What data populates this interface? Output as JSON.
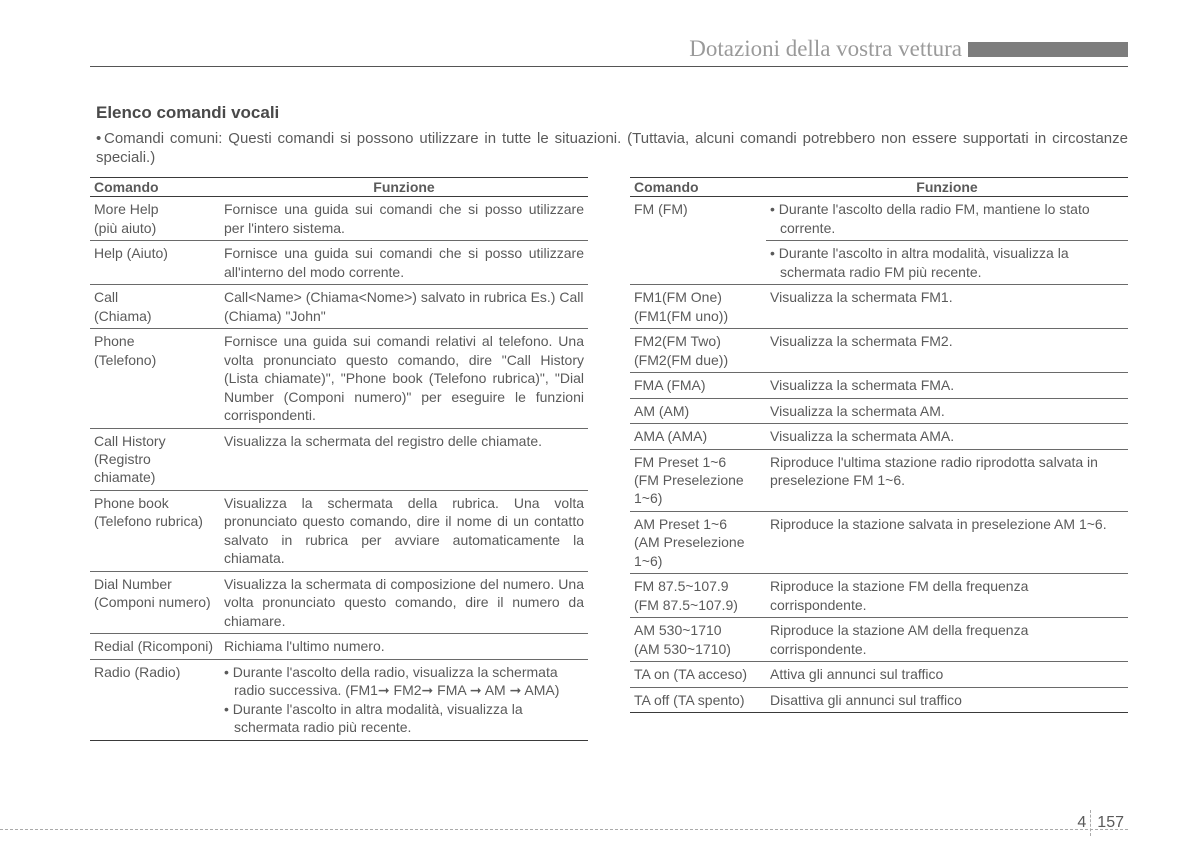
{
  "header": {
    "title": "Dotazioni della vostra vettura"
  },
  "section": {
    "title": "Elenco comandi vocali",
    "intro": "Comandi comuni: Questi comandi si possono utilizzare in tutte le situazioni. (Tuttavia, alcuni comandi potrebbero non essere supportati in circostanze speciali.)"
  },
  "tableHeaders": {
    "cmd": "Comando",
    "func": "Funzione"
  },
  "left": [
    {
      "c1": "More Help",
      "c1b": "(più aiuto)",
      "c2": "Fornisce una guida sui comandi che si posso utilizzare per l'intero sistema.",
      "jst": true
    },
    {
      "c1": "Help (Aiuto)",
      "c2": "Fornisce una guida sui comandi che si posso utilizzare all'interno del modo corrente.",
      "jst": true
    },
    {
      "c1": "Call<Name>",
      "c1b": "(Chiama<Nome>)",
      "c2": "Call<Name> (Chiama<Nome>) salvato in rubrica Es.) Call (Chiama) \"John\""
    },
    {
      "c1": "Phone",
      "c1b": "(Telefono)",
      "c2": "Fornisce una guida sui comandi relativi al telefono. Una volta pronunciato questo comando, dire \"Call History (Lista chiamate)\", \"Phone book (Telefono rubrica)\", \"Dial Number (Componi numero)\" per eseguire le funzioni corrispondenti.",
      "jst": true
    },
    {
      "c1": "Call History",
      "c1b": "(Registro chiamate)",
      "c2": "Visualizza la schermata del registro delle chiamate.",
      "jst": true
    },
    {
      "c1": "Phone book",
      "c1b": "(Telefono rubrica)",
      "c2": "Visualizza la schermata della rubrica. Una volta pronunciato questo comando, dire il nome di un contatto salvato in rubrica per avviare automaticamente la chiamata.",
      "jst": true
    },
    {
      "c1": "Dial Number",
      "c1b": "(Componi numero)",
      "c2": "Visualizza la schermata di composizione del numero. Una volta pronunciato questo comando, dire il numero da chiamare.",
      "jst": true
    },
    {
      "c1": "Redial (Ricomponi)",
      "c2": "Richiama l'ultimo numero."
    },
    {
      "c1": "Radio (Radio)",
      "c2list": [
        "Durante l'ascolto della radio, visualizza la schermata radio successiva. (FM1➞ FM2➞ FMA ➞ AM ➞ AMA)",
        "Durante l'ascolto in altra modalità, visualizza la schermata radio più recente."
      ]
    }
  ],
  "right": [
    {
      "c1": "FM (FM)",
      "c2list": [
        "Durante l'ascolto della radio FM, mantiene lo stato corrente.",
        "Durante l'ascolto in altra modalità, visualizza la schermata radio FM più recente."
      ],
      "split": true
    },
    {
      "c1": "FM1(FM One)",
      "c1b": "(FM1(FM uno))",
      "c2": "Visualizza la schermata FM1."
    },
    {
      "c1": "FM2(FM Two)",
      "c1b": "(FM2(FM due))",
      "c2": "Visualizza la schermata FM2."
    },
    {
      "c1": "FMA (FMA)",
      "c2": "Visualizza la schermata FMA."
    },
    {
      "c1": "AM (AM)",
      "c2": "Visualizza la schermata AM."
    },
    {
      "c1": "AMA (AMA)",
      "c2": "Visualizza la schermata AMA."
    },
    {
      "c1": "FM Preset 1~6",
      "c1b": "(FM Preselezione 1~6)",
      "c2": "Riproduce l'ultima stazione radio riprodotta salvata in preselezione FM 1~6."
    },
    {
      "c1": "AM Preset 1~6",
      "c1b": "(AM Preselezione 1~6)",
      "c2": "Riproduce la stazione salvata in preselezione AM 1~6."
    },
    {
      "c1": "FM 87.5~107.9",
      "c1b": "(FM 87.5~107.9)",
      "c2": "Riproduce la stazione FM della frequenza corrispondente."
    },
    {
      "c1": "AM 530~1710",
      "c1b": "(AM 530~1710)",
      "c2": "Riproduce la stazione AM della frequenza corrispondente."
    },
    {
      "c1": "TA on (TA acceso)",
      "c2": "Attiva gli annunci sul traffico"
    },
    {
      "c1": "TA off (TA spento)",
      "c2": "Disattiva gli annunci sul traffico"
    }
  ],
  "page": {
    "chapter": "4",
    "num": "157"
  }
}
